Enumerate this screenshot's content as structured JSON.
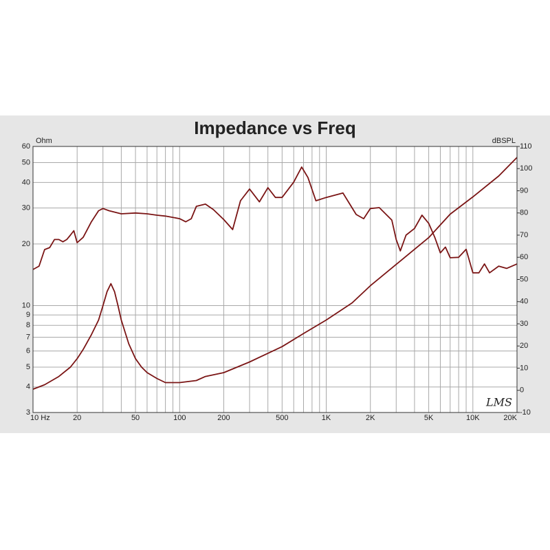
{
  "chart_data": {
    "type": "line",
    "title": "Impedance vs Freq",
    "y_label": "Ohm",
    "y2_label": "dBSPL",
    "watermark": "LMS",
    "xscale": "log",
    "yscale": "log",
    "xlim": [
      10,
      20000
    ],
    "ylim": [
      3,
      60
    ],
    "y2lim": [
      -10,
      110
    ],
    "xticks": [
      {
        "value": 10,
        "label": "10 Hz"
      },
      20,
      50,
      100,
      200,
      500,
      {
        "value": 1000,
        "label": "1K"
      },
      {
        "value": 2000,
        "label": "2K"
      },
      {
        "value": 5000,
        "label": "5K"
      },
      {
        "value": 10000,
        "label": "10K"
      },
      {
        "value": 20000,
        "label": "20K"
      }
    ],
    "xgrid": [
      30,
      40,
      60,
      70,
      80,
      90,
      300,
      400,
      600,
      700,
      800,
      900,
      3000,
      4000,
      6000,
      7000,
      8000,
      9000
    ],
    "yticks": [
      3,
      4,
      5,
      6,
      7,
      8,
      9,
      10,
      20,
      30,
      40,
      50,
      60
    ],
    "y2ticks": [
      -10,
      0,
      10,
      20,
      30,
      40,
      50,
      60,
      70,
      80,
      90,
      100,
      110
    ],
    "grid": true,
    "series": [
      {
        "color": "#7a1414",
        "axis": "y",
        "x": [
          10,
          12,
          15,
          18,
          20,
          22,
          25,
          28,
          30,
          32,
          34,
          36,
          38,
          40,
          45,
          50,
          55,
          60,
          70,
          80,
          100,
          130,
          150,
          200,
          300,
          500,
          700,
          1000,
          1500,
          2000,
          3000,
          5000,
          7000,
          10000,
          15000,
          20000
        ],
        "values": [
          3.9,
          4.1,
          4.5,
          5.0,
          5.5,
          6.1,
          7.2,
          8.5,
          10.0,
          11.7,
          12.8,
          11.7,
          10.0,
          8.5,
          6.5,
          5.5,
          5.0,
          4.7,
          4.4,
          4.2,
          4.2,
          4.3,
          4.5,
          4.7,
          5.3,
          6.3,
          7.3,
          8.5,
          10.3,
          12.5,
          15.9,
          21.5,
          28,
          34,
          43,
          53
        ]
      },
      {
        "color": "#7a1414",
        "axis": "y2",
        "x": [
          10,
          11,
          12,
          13,
          14,
          15,
          16,
          17,
          18,
          19,
          20,
          22,
          25,
          28,
          30,
          33,
          40,
          50,
          60,
          70,
          80,
          90,
          100,
          110,
          120,
          130,
          150,
          170,
          200,
          230,
          260,
          300,
          350,
          400,
          450,
          500,
          600,
          680,
          750,
          850,
          1000,
          1300,
          1600,
          1800,
          2000,
          2300,
          2800,
          3000,
          3200,
          3500,
          4000,
          4500,
          5000,
          5500,
          6000,
          6500,
          7000,
          8000,
          9000,
          10000,
          11000,
          12000,
          13000,
          15000,
          17000,
          20000
        ],
        "values": [
          54.5,
          56,
          63.5,
          64.4,
          68,
          68,
          67,
          68,
          70,
          72,
          66.6,
          69,
          76,
          81,
          82,
          81,
          79.6,
          80,
          79.6,
          79,
          78.6,
          78,
          77.4,
          76,
          77.4,
          83,
          84,
          81.5,
          77,
          72.5,
          85.5,
          90.8,
          85,
          91.4,
          87,
          87,
          93.9,
          100.7,
          96,
          85.5,
          87,
          89,
          79.3,
          77.4,
          82,
          82.4,
          76.8,
          68,
          62.9,
          70,
          73,
          79,
          75.3,
          69,
          62,
          64.6,
          59.8,
          60,
          63.6,
          53,
          53,
          57,
          53,
          56,
          55,
          57
        ]
      }
    ]
  }
}
